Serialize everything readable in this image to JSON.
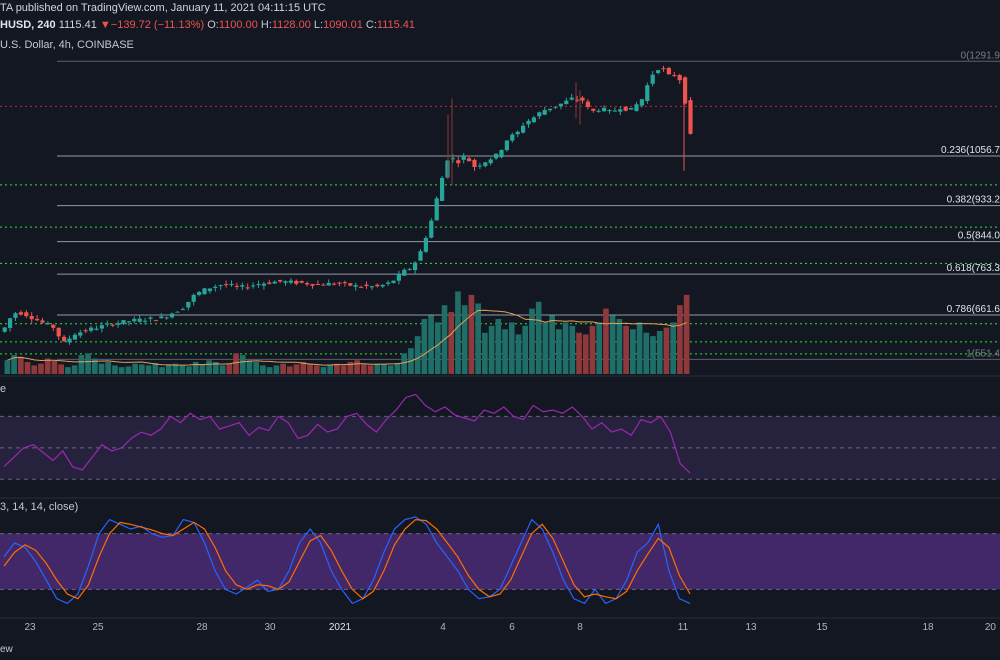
{
  "header": {
    "publisher": "TA published on TradingView.com, January 11, 2021 04:11:15 UTC",
    "symbol": "HUSD, 240",
    "last": "1115.41",
    "change_arrow": "▼",
    "change": "−139.72 (−11.13%)",
    "o_label": "O:",
    "o_value": "1100.00",
    "h_label": "H:",
    "h_value": "1128.00",
    "l_label": "L:",
    "l_value": "1090.01",
    "c_label": "C:",
    "c_value": "1115.41",
    "pair": "U.S. Dollar, 4h, COINBASE"
  },
  "rsi_panel": {
    "label": "e"
  },
  "stoch_panel": {
    "label": "3, 14, 14, close)"
  },
  "footer": {
    "label": "ew"
  },
  "colors": {
    "background": "#131722",
    "up": "#26a69a",
    "down": "#ef5350",
    "up_volume": "#1f6e68",
    "down_volume": "#8e3a3c",
    "fib_line": "#9598a1",
    "support_dotted": "#2ee62e",
    "resistance_dotted": "#c62828",
    "rsi_line": "#9c27b0",
    "rsi_band": "#7e57c2",
    "stoch_band": "#7e3ec0",
    "stoch_k": "#2962ff",
    "stoch_d": "#ff6d00",
    "volume_ma": "#e3a05a"
  },
  "chart_data": [
    {
      "type": "candlestick",
      "title": "",
      "ylim": [
        520,
        1320
      ],
      "fib_levels": [
        {
          "label": "0(1291.9",
          "ratio": 0,
          "price": 1291.9
        },
        {
          "label": "0.236(1056.7",
          "ratio": 0.236,
          "price": 1056.7
        },
        {
          "label": "0.382(933.2",
          "ratio": 0.382,
          "price": 933.2
        },
        {
          "label": "0.5(844.0",
          "ratio": 0.5,
          "price": 844.0
        },
        {
          "label": "0.618(763.3",
          "ratio": 0.618,
          "price": 763.3
        },
        {
          "label": "0.786(661.6",
          "ratio": 0.786,
          "price": 661.6
        },
        {
          "label": "1(551.4",
          "ratio": 1,
          "price": 551.4
        }
      ],
      "horizontal_levels": [
        {
          "price": 1180,
          "style": "dotted-red"
        },
        {
          "price": 985,
          "style": "dotted-green"
        },
        {
          "price": 880,
          "style": "dotted-green"
        },
        {
          "price": 790,
          "style": "dotted-green"
        },
        {
          "price": 640,
          "style": "dotted-green"
        },
        {
          "price": 595,
          "style": "dotted-green"
        },
        {
          "price": 565,
          "style": "dotted-green"
        }
      ],
      "x_ticks": [
        "23",
        "25",
        "28",
        "30",
        "2021",
        "4",
        "6",
        "8",
        "11",
        "13",
        "15",
        "18",
        "20"
      ],
      "price_path": [
        [
          0,
          620
        ],
        [
          6,
          650
        ],
        [
          14,
          670
        ],
        [
          24,
          662
        ],
        [
          40,
          642
        ],
        [
          52,
          630
        ],
        [
          60,
          590
        ],
        [
          72,
          615
        ],
        [
          90,
          628
        ],
        [
          110,
          640
        ],
        [
          130,
          648
        ],
        [
          160,
          655
        ],
        [
          180,
          680
        ],
        [
          192,
          712
        ],
        [
          205,
          728
        ],
        [
          220,
          738
        ],
        [
          238,
          730
        ],
        [
          258,
          740
        ],
        [
          275,
          745
        ],
        [
          295,
          742
        ],
        [
          315,
          738
        ],
        [
          335,
          740
        ],
        [
          355,
          733
        ],
        [
          375,
          732
        ],
        [
          388,
          742
        ],
        [
          400,
          768
        ],
        [
          410,
          782
        ],
        [
          418,
          820
        ],
        [
          428,
          890
        ],
        [
          438,
          990
        ],
        [
          446,
          1060
        ],
        [
          454,
          1040
        ],
        [
          462,
          1058
        ],
        [
          472,
          1030
        ],
        [
          484,
          1045
        ],
        [
          495,
          1060
        ],
        [
          505,
          1100
        ],
        [
          515,
          1115
        ],
        [
          522,
          1140
        ],
        [
          530,
          1150
        ],
        [
          540,
          1170
        ],
        [
          552,
          1180
        ],
        [
          562,
          1190
        ],
        [
          570,
          1200
        ],
        [
          580,
          1195
        ],
        [
          588,
          1165
        ],
        [
          598,
          1175
        ],
        [
          608,
          1165
        ],
        [
          618,
          1178
        ],
        [
          628,
          1170
        ],
        [
          640,
          1200
        ],
        [
          648,
          1255
        ],
        [
          655,
          1275
        ],
        [
          662,
          1270
        ],
        [
          668,
          1250
        ],
        [
          672,
          1260
        ],
        [
          678,
          1245
        ],
        [
          683,
          1185
        ],
        [
          686,
          1100
        ],
        [
          690,
          1115
        ]
      ],
      "volumes": [
        40,
        55,
        50,
        35,
        25,
        30,
        45,
        38,
        28,
        20,
        25,
        55,
        60,
        45,
        30,
        35,
        25,
        20,
        22,
        30,
        28,
        25,
        32,
        20,
        28,
        30,
        25,
        22,
        35,
        28,
        40,
        35,
        25,
        30,
        60,
        55,
        40,
        35,
        25,
        20,
        25,
        30,
        22,
        28,
        35,
        30,
        25,
        20,
        28,
        30,
        25,
        35,
        40,
        28,
        25,
        30,
        28,
        25,
        32,
        60,
        75,
        110,
        160,
        170,
        150,
        200,
        180,
        240,
        200,
        230,
        205,
        120,
        140,
        160,
        130,
        150,
        115,
        140,
        190,
        210,
        150,
        170,
        130,
        150,
        140,
        120,
        115,
        140,
        150,
        190,
        170,
        160,
        140,
        130,
        150,
        120,
        110,
        125,
        135,
        150,
        200,
        230
      ],
      "volume_ma_ylim": [
        0,
        250
      ]
    },
    {
      "type": "line",
      "name": "RSI",
      "ylim": [
        20,
        90
      ],
      "bands": [
        30,
        50,
        70
      ],
      "values": [
        38,
        44,
        50,
        52,
        47,
        42,
        48,
        38,
        36,
        44,
        52,
        48,
        50,
        56,
        60,
        58,
        62,
        70,
        66,
        72,
        68,
        70,
        62,
        64,
        66,
        58,
        63,
        61,
        70,
        66,
        56,
        58,
        65,
        60,
        62,
        70,
        72,
        65,
        60,
        68,
        74,
        82,
        84,
        77,
        73,
        76,
        71,
        69,
        67,
        74,
        72,
        76,
        70,
        68,
        77,
        73,
        74,
        72,
        76,
        70,
        62,
        66,
        60,
        62,
        58,
        68,
        66,
        70,
        60,
        40,
        34
      ]
    },
    {
      "type": "line",
      "name": "Stochastic RSI",
      "ylim": [
        0,
        100
      ],
      "bands": [
        20,
        80
      ],
      "series": [
        {
          "name": "K",
          "values": [
            55,
            70,
            65,
            50,
            30,
            10,
            5,
            15,
            45,
            80,
            95,
            90,
            85,
            88,
            80,
            76,
            78,
            95,
            92,
            70,
            40,
            20,
            15,
            22,
            30,
            18,
            20,
            40,
            70,
            85,
            70,
            40,
            20,
            5,
            10,
            30,
            60,
            85,
            95,
            98,
            90,
            70,
            55,
            40,
            20,
            10,
            12,
            20,
            45,
            70,
            95,
            85,
            60,
            30,
            10,
            5,
            20,
            5,
            10,
            30,
            60,
            70,
            90,
            40,
            10,
            5
          ]
        },
        {
          "name": "D",
          "values": [
            45,
            60,
            68,
            62,
            48,
            30,
            15,
            10,
            25,
            55,
            80,
            92,
            90,
            87,
            84,
            80,
            78,
            85,
            92,
            85,
            65,
            40,
            25,
            20,
            25,
            24,
            20,
            28,
            50,
            72,
            78,
            62,
            40,
            20,
            10,
            18,
            40,
            68,
            85,
            95,
            94,
            85,
            70,
            55,
            35,
            20,
            12,
            15,
            30,
            55,
            80,
            90,
            75,
            50,
            25,
            12,
            15,
            12,
            10,
            18,
            40,
            58,
            75,
            65,
            35,
            15
          ]
        }
      ]
    }
  ]
}
